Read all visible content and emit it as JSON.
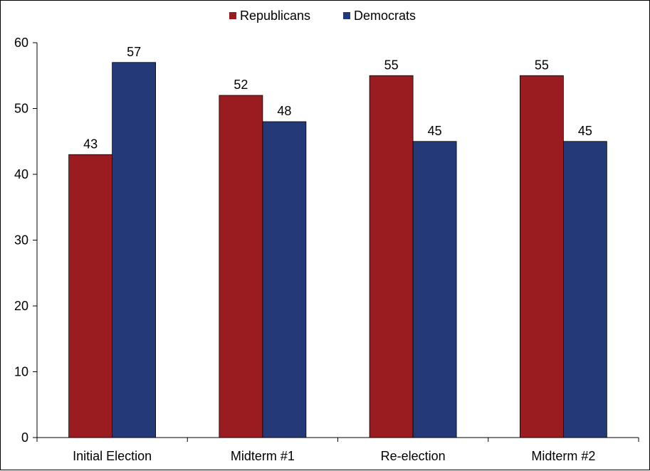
{
  "chart_data": {
    "type": "bar",
    "title": "",
    "xlabel": "",
    "ylabel": "",
    "categories": [
      "Initial Election",
      "Midterm #1",
      "Re-election",
      "Midterm #2"
    ],
    "series": [
      {
        "name": "Republicans",
        "values": [
          43,
          52,
          55,
          55
        ],
        "color": "#9b1c20"
      },
      {
        "name": "Democrats",
        "values": [
          57,
          48,
          45,
          45
        ],
        "color": "#243a78"
      }
    ],
    "ylim": [
      0,
      60
    ],
    "yticks": [
      "0",
      "10",
      "20",
      "30",
      "40",
      "50",
      "60"
    ],
    "grid": false,
    "legend_position": "top-center",
    "data_labels": true
  }
}
